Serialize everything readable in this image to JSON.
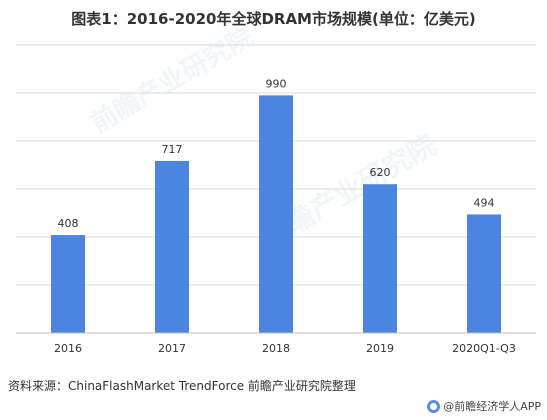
{
  "title": "图表1：2016-2020年全球DRAM市场规模(单位：亿美元)",
  "source": "资料来源：ChinaFlashMarket TrendForce 前瞻产业研究院整理",
  "watermark": "前瞻产业研究院",
  "brand": "@前瞻经济学人APP",
  "colors": {
    "bar": "#4a86e0",
    "grid": "#d9d9d9",
    "axis": "#bfbfbf"
  },
  "chart_data": {
    "type": "bar",
    "title": "图表1：2016-2020年全球DRAM市场规模(单位：亿美元)",
    "categories": [
      "2016",
      "2017",
      "2018",
      "2019",
      "2020Q1-Q3"
    ],
    "values": [
      408,
      717,
      990,
      620,
      494
    ],
    "ylim": [
      0,
      1200
    ],
    "y_grid_step": 200,
    "grid": true,
    "legend": "none",
    "xlabel": "",
    "ylabel": ""
  }
}
